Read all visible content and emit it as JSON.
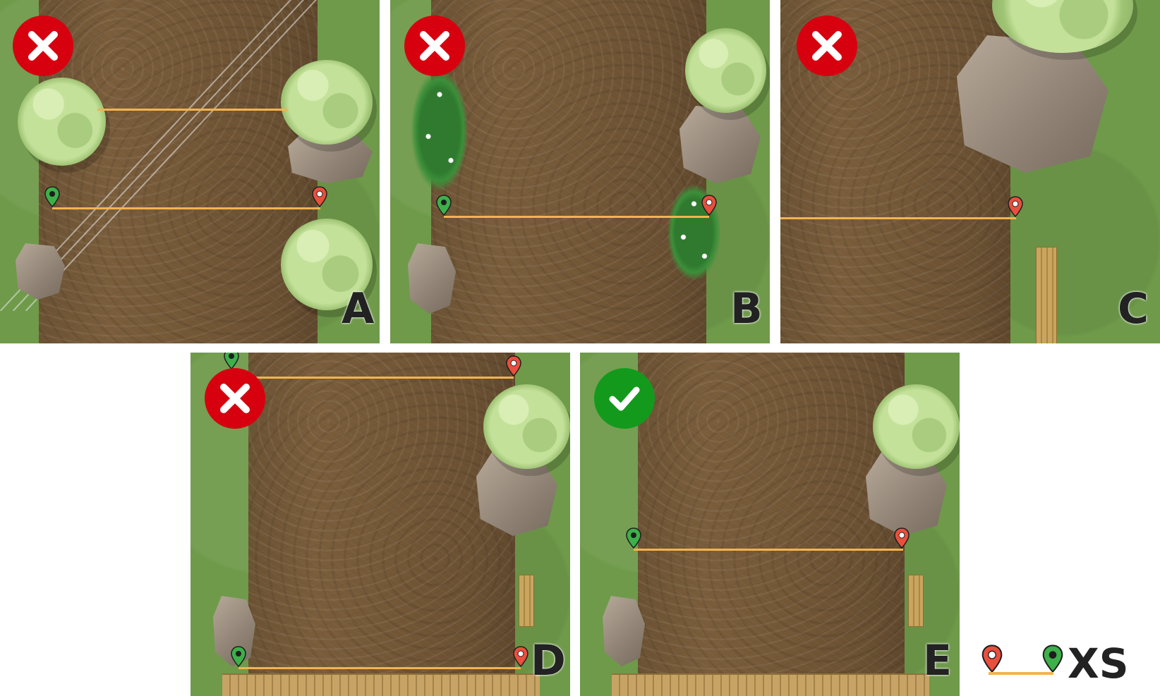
{
  "panels": [
    {
      "letter": "A",
      "status": "incorrect",
      "status_icon": "x-icon"
    },
    {
      "letter": "B",
      "status": "incorrect",
      "status_icon": "x-icon"
    },
    {
      "letter": "C",
      "status": "incorrect",
      "status_icon": "x-icon"
    },
    {
      "letter": "D",
      "status": "incorrect",
      "status_icon": "x-icon"
    },
    {
      "letter": "E",
      "status": "correct",
      "status_icon": "check-icon"
    }
  ],
  "legend": {
    "label": "XS",
    "start_pin": "red-map-pin-icon",
    "end_pin": "green-map-pin-icon"
  },
  "colors": {
    "grass": "#6f9a4a",
    "river": "#735736",
    "measure_line": "#f2b350",
    "incorrect_badge": "#d7000f",
    "correct_badge": "#139a1c",
    "start_pin": "#e94f3d",
    "end_pin": "#3db04a"
  }
}
